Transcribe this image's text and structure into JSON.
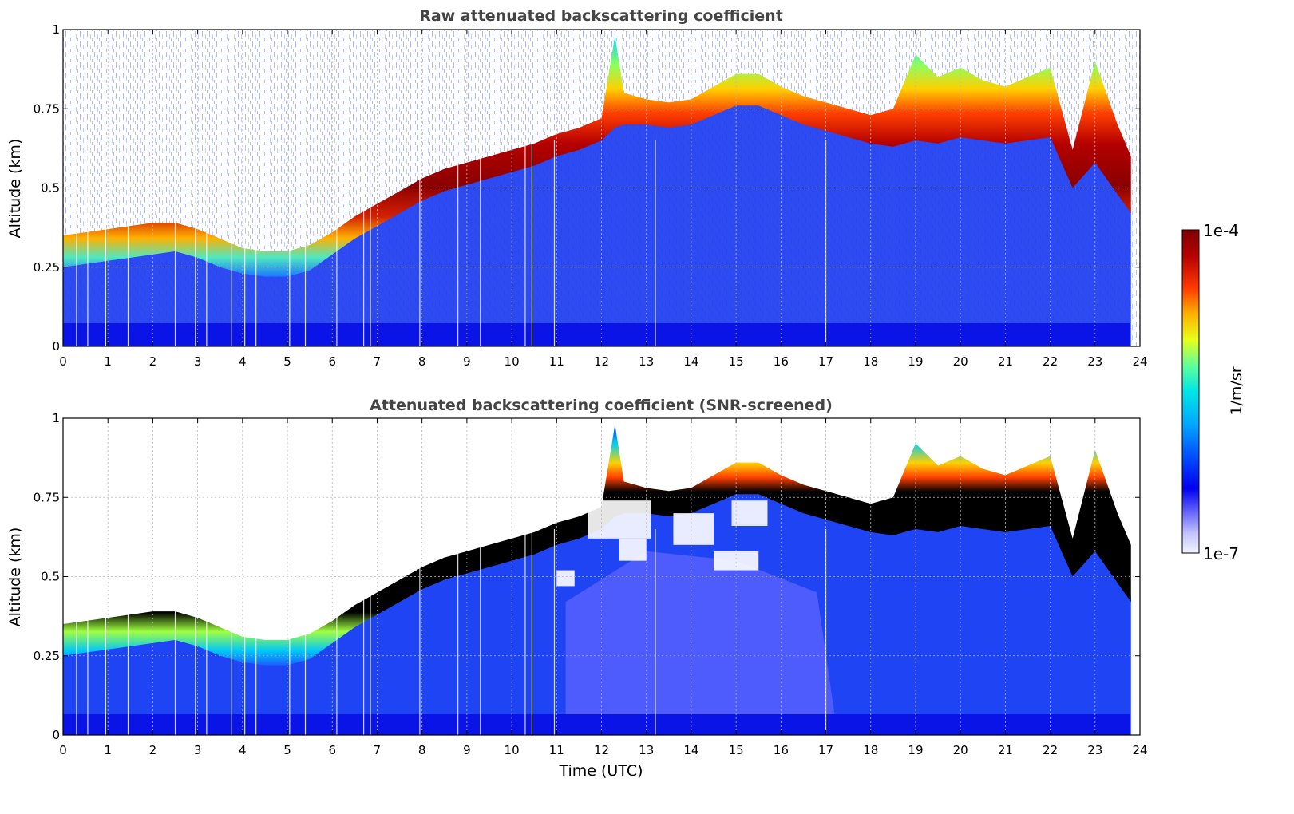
{
  "chart_data": [
    {
      "type": "heatmap",
      "title": "Raw attenuated backscattering coefficient",
      "xlabel": "",
      "ylabel": "Altitude (km)",
      "xlim": [
        0,
        24
      ],
      "ylim": [
        0,
        1
      ],
      "x_ticks": [
        "0",
        "1",
        "2",
        "3",
        "4",
        "5",
        "6",
        "7",
        "8",
        "9",
        "10",
        "11",
        "12",
        "13",
        "14",
        "15",
        "16",
        "17",
        "18",
        "19",
        "20",
        "21",
        "22",
        "23",
        "24"
      ],
      "y_ticks": [
        "0",
        "0.25",
        "0.5",
        "0.75",
        "1"
      ],
      "grid": true,
      "data_end_hour": 23.8,
      "cloud_layer": {
        "time_utc": [
          0,
          0.5,
          1,
          1.5,
          2,
          2.5,
          3,
          3.5,
          4,
          4.5,
          5,
          5.5,
          6,
          6.5,
          7,
          7.5,
          8,
          8.5,
          9,
          9.5,
          10,
          10.5,
          11,
          11.5,
          12,
          12.3,
          12.5,
          13,
          13.5,
          14,
          14.5,
          15,
          15.5,
          16,
          16.5,
          17,
          17.5,
          18,
          18.5,
          19,
          19.5,
          20,
          20.5,
          21,
          21.5,
          22,
          22.5,
          23,
          23.5,
          23.8
        ],
        "base_km": [
          0.25,
          0.26,
          0.27,
          0.28,
          0.29,
          0.3,
          0.28,
          0.25,
          0.23,
          0.22,
          0.22,
          0.24,
          0.29,
          0.34,
          0.38,
          0.42,
          0.46,
          0.49,
          0.51,
          0.53,
          0.55,
          0.57,
          0.6,
          0.62,
          0.65,
          0.69,
          0.7,
          0.7,
          0.69,
          0.7,
          0.73,
          0.76,
          0.76,
          0.73,
          0.7,
          0.68,
          0.66,
          0.64,
          0.63,
          0.65,
          0.64,
          0.66,
          0.65,
          0.64,
          0.65,
          0.66,
          0.5,
          0.58,
          0.48,
          0.42
        ],
        "top_km": [
          0.35,
          0.36,
          0.37,
          0.38,
          0.39,
          0.39,
          0.37,
          0.34,
          0.31,
          0.3,
          0.3,
          0.32,
          0.36,
          0.41,
          0.45,
          0.49,
          0.53,
          0.56,
          0.58,
          0.6,
          0.62,
          0.64,
          0.67,
          0.69,
          0.72,
          0.98,
          0.8,
          0.78,
          0.77,
          0.78,
          0.82,
          0.86,
          0.86,
          0.82,
          0.79,
          0.77,
          0.75,
          0.73,
          0.75,
          0.92,
          0.85,
          0.88,
          0.84,
          0.82,
          0.85,
          0.88,
          0.62,
          0.9,
          0.7,
          0.6
        ]
      }
    },
    {
      "type": "heatmap",
      "title": "Attenuated backscattering coefficient (SNR-screened)",
      "xlabel": "Time (UTC)",
      "ylabel": "Altitude (km)",
      "xlim": [
        0,
        24
      ],
      "ylim": [
        0,
        1
      ],
      "x_ticks": [
        "0",
        "1",
        "2",
        "3",
        "4",
        "5",
        "6",
        "7",
        "8",
        "9",
        "10",
        "11",
        "12",
        "13",
        "14",
        "15",
        "16",
        "17",
        "18",
        "19",
        "20",
        "21",
        "22",
        "23",
        "24"
      ],
      "y_ticks": [
        "0",
        "0.25",
        "0.5",
        "0.75",
        "1"
      ],
      "grid": true,
      "data_end_hour": 23.8,
      "cloud_layer": "same as raw panel, saturated core shown in black"
    }
  ],
  "colorbar": {
    "label": "1/m/sr",
    "max_label": "1e-4",
    "min_label": "1e-7",
    "colors": [
      "#f2f2ff",
      "#c4c4ff",
      "#6f6fff",
      "#0000ee",
      "#0050ff",
      "#00a8ff",
      "#00e6e6",
      "#60ff9a",
      "#e6ff1a",
      "#ffb000",
      "#ff3a00",
      "#b40000",
      "#7f0000"
    ]
  },
  "colors": {
    "background_sparse": "#ffffff",
    "aerosol_low": "#1b3cf0",
    "aerosol_mid": "#2f75ff",
    "screened_residual": "#4f5dff",
    "saturated_core": "#000000",
    "peak": "#8b0000"
  }
}
